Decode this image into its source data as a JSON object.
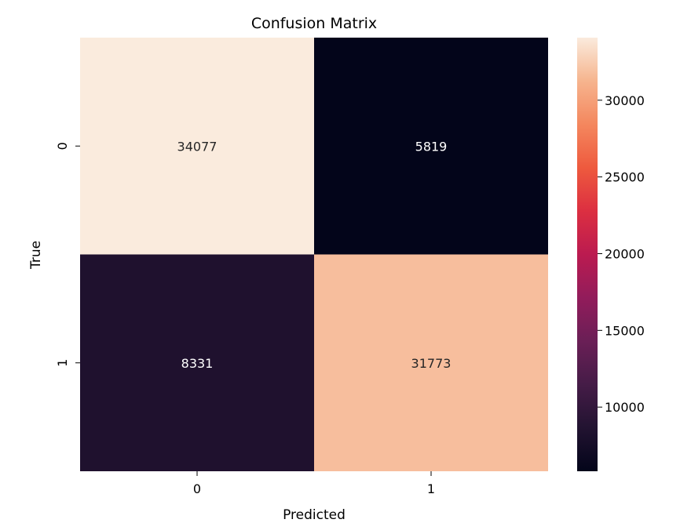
{
  "chart_data": {
    "type": "heatmap",
    "title": "Confusion Matrix",
    "xlabel": "Predicted",
    "ylabel": "True",
    "x_categories": [
      "0",
      "1"
    ],
    "y_categories": [
      "0",
      "1"
    ],
    "values": [
      [
        34077,
        5819
      ],
      [
        8331,
        31773
      ]
    ],
    "colormap": "rocket",
    "colorbar": {
      "range": [
        5819,
        34077
      ],
      "ticks": [
        10000,
        15000,
        20000,
        25000,
        30000
      ],
      "tick_labels": [
        "10000",
        "15000",
        "20000",
        "25000",
        "30000"
      ]
    },
    "legend": "none",
    "grid": false
  }
}
